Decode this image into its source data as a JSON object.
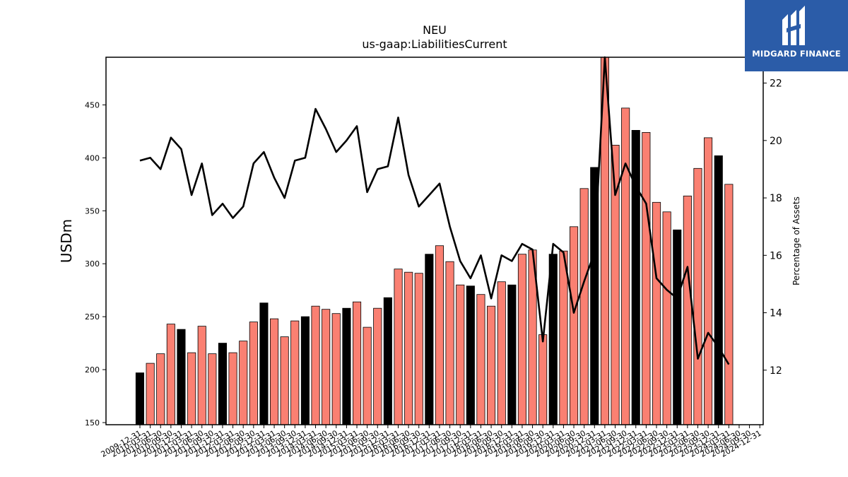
{
  "logo": {
    "text": "MIDGARD FINANCE"
  },
  "chart_data": {
    "type": "bar",
    "title": "NEU",
    "subtitle": "us-gaap:LiabilitiesCurrent",
    "ylabel": "USDm",
    "y2label": "Percentage of Assets",
    "ylim": [
      148,
      495
    ],
    "y2lim": [
      10.1,
      22.9
    ],
    "yticks": [
      150,
      200,
      250,
      300,
      350,
      400,
      450
    ],
    "y2ticks": [
      12,
      14,
      16,
      18,
      20,
      22
    ],
    "colors": {
      "q4": "#000000",
      "other": "#fa8072"
    },
    "categories": [
      "2009-12-31",
      "2010-03-31",
      "2010-06-30",
      "2010-09-30",
      "2010-12-31",
      "2011-03-31",
      "2011-06-30",
      "2011-09-30",
      "2011-12-31",
      "2012-03-31",
      "2012-06-30",
      "2012-09-30",
      "2012-12-31",
      "2013-03-31",
      "2013-06-30",
      "2013-09-30",
      "2013-12-31",
      "2014-03-31",
      "2014-06-30",
      "2014-09-30",
      "2014-12-31",
      "2015-03-31",
      "2015-06-30",
      "2015-09-30",
      "2015-12-31",
      "2016-03-31",
      "2016-06-30",
      "2016-09-30",
      "2016-12-31",
      "2017-03-31",
      "2017-06-30",
      "2017-09-30",
      "2017-12-31",
      "2018-03-31",
      "2018-06-30",
      "2018-09-30",
      "2018-12-31",
      "2019-03-31",
      "2019-06-30",
      "2019-09-30",
      "2019-12-31",
      "2020-03-31",
      "2020-06-30",
      "2020-09-30",
      "2020-12-31",
      "2021-03-31",
      "2021-06-30",
      "2021-09-30",
      "2021-12-31",
      "2022-03-31",
      "2022-06-30",
      "2022-09-30",
      "2022-12-31",
      "2023-03-31",
      "2023-06-30",
      "2023-09-30",
      "2023-12-31",
      "2024-03-31",
      "2024-06-30",
      "2024-09-30",
      "2024-12-31"
    ],
    "tick_labels": [
      "2009-12-31",
      "2010-03-31",
      "2010-06-30",
      "2010-09-30",
      "2010-12-31",
      "2011-03-31",
      "2011-06-30",
      "2011-09-30",
      "2011-12-31",
      "2012-03-31",
      "2012-06-30",
      "2012-09-30",
      "2012-12-31",
      "2013-03-31",
      "2013-06-30",
      "2013-09-30",
      "2013-12-31",
      "2014-03-31",
      "2014-06-30",
      "2014-09-30",
      "2014-12-31",
      "2015-03-31",
      "2015-06-30",
      "2015-09-30",
      "2015-12-31",
      "2016-03-31",
      "2016-06-30",
      "2016-09-30",
      "2016-12-31",
      "2017-03-31",
      "2017-06-30",
      "2017-09-30",
      "2017-12-31",
      "2018-03-31",
      "2018-06-30",
      "2018-09-30",
      "2018-12-31",
      "2019-03-31",
      "2019-06-30",
      "2019-09-30",
      "2019-12-31",
      "2020-03-31",
      "2020-06-30",
      "2020-09-30",
      "2020-12-31",
      "2021-03-31",
      "2021-06-30",
      "2021-09-30",
      "2021-12-31",
      "2022-03-31",
      "2022-06-30",
      "2022-09-30",
      "2022-12-31",
      "2023-03-31",
      "2023-06-30",
      "2023-09-30",
      "2023-12-31",
      "2024-03-31",
      "2024-06-30",
      "2024-09-30",
      "2024-12-31"
    ],
    "series": [
      {
        "type": "bar",
        "values": [
          197,
          206,
          215,
          243,
          238,
          216,
          241,
          215,
          225,
          216,
          227,
          245,
          263,
          248,
          231,
          246,
          250,
          260,
          257,
          253,
          258,
          264,
          240,
          258,
          268,
          295,
          292,
          291,
          309,
          317,
          302,
          280,
          279,
          271,
          260,
          283,
          280,
          309,
          313,
          233,
          309,
          312,
          335,
          371,
          391,
          495,
          412,
          447,
          426,
          424,
          358,
          349,
          332,
          364,
          390,
          419,
          402,
          375,
          null,
          null,
          null
        ]
      },
      {
        "type": "line",
        "values": [
          19.3,
          19.4,
          19.0,
          20.1,
          19.7,
          18.1,
          19.2,
          17.4,
          17.8,
          17.3,
          17.7,
          19.2,
          19.6,
          18.7,
          18.0,
          19.3,
          19.4,
          21.1,
          20.4,
          19.6,
          20.0,
          20.5,
          18.2,
          19.0,
          19.1,
          20.8,
          18.8,
          17.7,
          18.1,
          18.5,
          17.0,
          15.8,
          15.2,
          16.0,
          14.5,
          16.0,
          15.8,
          16.4,
          16.2,
          13.0,
          16.4,
          16.1,
          14.0,
          15.1,
          16.1,
          23.0,
          18.1,
          19.2,
          18.4,
          17.8,
          15.2,
          14.8,
          14.5,
          15.6,
          12.4,
          13.3,
          12.8,
          12.2,
          null,
          null,
          null
        ]
      }
    ]
  }
}
